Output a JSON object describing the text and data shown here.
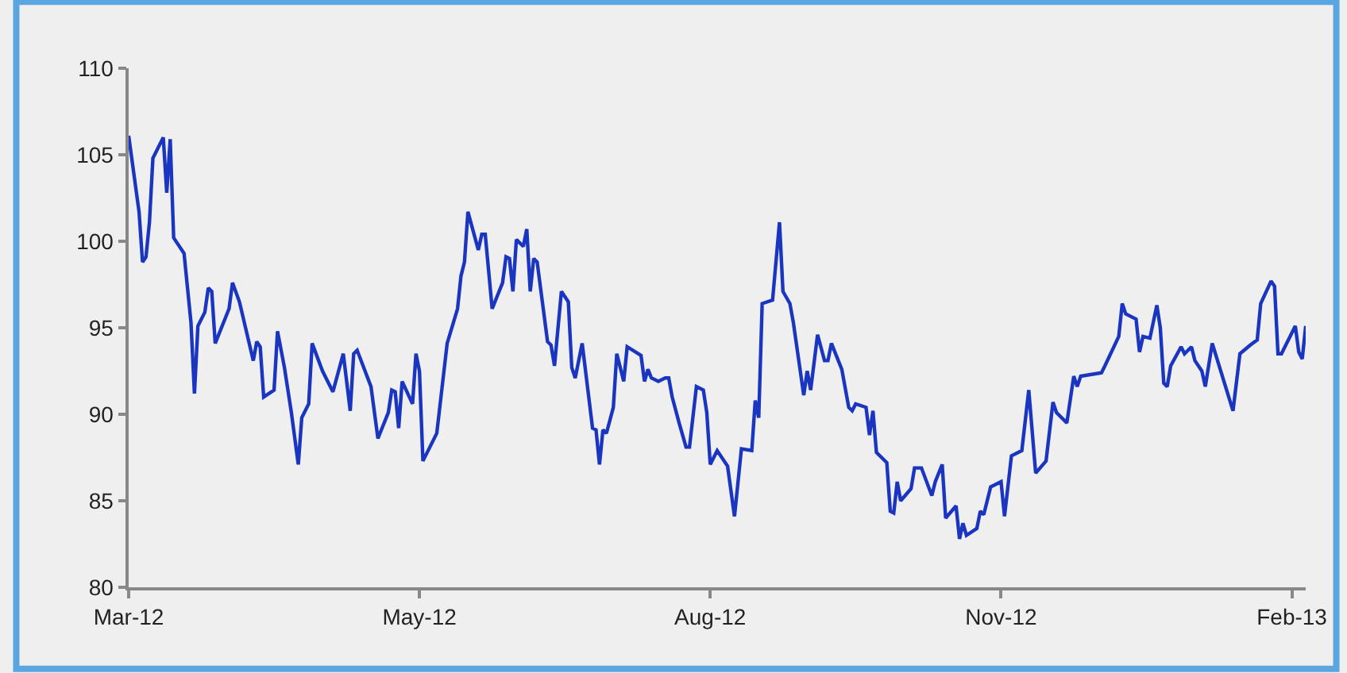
{
  "chart_data": {
    "type": "line",
    "x": [
      "2012-03-08",
      "2012-03-11",
      "2012-03-12",
      "2012-03-13",
      "2012-03-14",
      "2012-03-15",
      "2012-03-18",
      "2012-03-19",
      "2012-03-20",
      "2012-03-21",
      "2012-03-24",
      "2012-03-26",
      "2012-03-27",
      "2012-03-28",
      "2012-03-30",
      "2012-03-31",
      "2012-04-01",
      "2012-04-02",
      "2012-04-06",
      "2012-04-07",
      "2012-04-09",
      "2012-04-13",
      "2012-04-14",
      "2012-04-15",
      "2012-04-16",
      "2012-04-19",
      "2012-04-20",
      "2012-04-22",
      "2012-04-24",
      "2012-04-26",
      "2012-04-27",
      "2012-04-29",
      "2012-04-30",
      "2012-05-03",
      "2012-05-06",
      "2012-05-09",
      "2012-05-11",
      "2012-05-12",
      "2012-05-13",
      "2012-05-17",
      "2012-05-19",
      "2012-05-22",
      "2012-05-23",
      "2012-05-24",
      "2012-05-25",
      "2012-05-26",
      "2012-05-29",
      "2012-05-30",
      "2012-05-31",
      "2012-06-01",
      "2012-06-05",
      "2012-06-08",
      "2012-06-11",
      "2012-06-12",
      "2012-06-13",
      "2012-06-14",
      "2012-06-17",
      "2012-06-18",
      "2012-06-19",
      "2012-06-21",
      "2012-06-24",
      "2012-06-25",
      "2012-06-26",
      "2012-06-27",
      "2012-06-28",
      "2012-06-30",
      "2012-07-01",
      "2012-07-02",
      "2012-07-03",
      "2012-07-04",
      "2012-07-07",
      "2012-07-08",
      "2012-07-09",
      "2012-07-11",
      "2012-07-13",
      "2012-07-14",
      "2012-07-15",
      "2012-07-17",
      "2012-07-20",
      "2012-07-21",
      "2012-07-22",
      "2012-07-23",
      "2012-07-24",
      "2012-07-26",
      "2012-07-27",
      "2012-07-29",
      "2012-07-30",
      "2012-08-03",
      "2012-08-04",
      "2012-08-05",
      "2012-08-06",
      "2012-08-08",
      "2012-08-10",
      "2012-08-11",
      "2012-08-12",
      "2012-08-14",
      "2012-08-16",
      "2012-08-17",
      "2012-08-19",
      "2012-08-21",
      "2012-08-22",
      "2012-08-23",
      "2012-08-25",
      "2012-08-28",
      "2012-08-30",
      "2012-09-01",
      "2012-09-04",
      "2012-09-05",
      "2012-09-06",
      "2012-09-07",
      "2012-09-10",
      "2012-09-12",
      "2012-09-13",
      "2012-09-15",
      "2012-09-16",
      "2012-09-19",
      "2012-09-20",
      "2012-09-21",
      "2012-09-23",
      "2012-09-25",
      "2012-09-26",
      "2012-09-27",
      "2012-09-30",
      "2012-10-02",
      "2012-10-03",
      "2012-10-04",
      "2012-10-07",
      "2012-10-08",
      "2012-10-09",
      "2012-10-10",
      "2012-10-13",
      "2012-10-14",
      "2012-10-15",
      "2012-10-16",
      "2012-10-17",
      "2012-10-20",
      "2012-10-21",
      "2012-10-23",
      "2012-10-26",
      "2012-10-27",
      "2012-10-29",
      "2012-10-30",
      "2012-11-02",
      "2012-11-03",
      "2012-11-04",
      "2012-11-05",
      "2012-11-08",
      "2012-11-09",
      "2012-11-10",
      "2012-11-12",
      "2012-11-15",
      "2012-11-16",
      "2012-11-18",
      "2012-11-21",
      "2012-11-23",
      "2012-11-25",
      "2012-11-28",
      "2012-11-30",
      "2012-12-01",
      "2012-12-04",
      "2012-12-06",
      "2012-12-07",
      "2012-12-08",
      "2012-12-14",
      "2012-12-15",
      "2012-12-19",
      "2012-12-20",
      "2012-12-21",
      "2012-12-24",
      "2012-12-25",
      "2012-12-26",
      "2012-12-28",
      "2012-12-30",
      "2012-12-31",
      "2013-01-01",
      "2013-01-02",
      "2013-01-03",
      "2013-01-06",
      "2013-01-07",
      "2013-01-09",
      "2013-01-10",
      "2013-01-12",
      "2013-01-13",
      "2013-01-15",
      "2013-01-21",
      "2013-01-23",
      "2013-01-26",
      "2013-01-28",
      "2013-01-29",
      "2013-02-01",
      "2013-02-02",
      "2013-02-03",
      "2013-02-04",
      "2013-02-08",
      "2013-02-09",
      "2013-02-10",
      "2013-02-11"
    ],
    "series": [
      {
        "color": "#1a35c0",
        "values": [
          106.1,
          101.7,
          98.8,
          99.1,
          101.1,
          104.8,
          106.0,
          102.8,
          105.9,
          100.2,
          99.3,
          95.3,
          91.2,
          95.1,
          95.9,
          97.3,
          97.1,
          94.1,
          96.1,
          97.6,
          96.5,
          93.1,
          94.2,
          93.9,
          91.0,
          91.4,
          94.8,
          92.7,
          90.1,
          87.1,
          89.8,
          90.6,
          94.1,
          92.5,
          91.3,
          93.5,
          90.2,
          93.5,
          93.7,
          91.6,
          88.6,
          90.1,
          91.4,
          91.3,
          89.2,
          91.9,
          90.6,
          93.5,
          92.5,
          87.3,
          88.9,
          94.1,
          96.1,
          98.0,
          98.8,
          101.7,
          99.5,
          100.4,
          100.4,
          96.1,
          97.6,
          99.1,
          99.0,
          97.1,
          100.1,
          99.7,
          100.7,
          97.1,
          99.0,
          98.8,
          94.2,
          94.0,
          92.8,
          97.1,
          96.5,
          92.7,
          92.1,
          94.1,
          89.2,
          89.1,
          87.1,
          89.1,
          88.9,
          90.4,
          93.5,
          91.9,
          93.9,
          93.4,
          91.9,
          92.6,
          92.1,
          91.9,
          92.1,
          92.1,
          91.0,
          89.5,
          88.1,
          88.1,
          91.6,
          91.4,
          90.1,
          87.1,
          87.9,
          87.0,
          84.1,
          88.0,
          87.9,
          90.8,
          89.8,
          96.4,
          96.6,
          101.1,
          97.1,
          96.4,
          95.3,
          91.1,
          92.5,
          91.4,
          94.6,
          93.1,
          93.1,
          94.1,
          92.6,
          90.4,
          90.2,
          90.6,
          90.4,
          88.8,
          90.2,
          87.8,
          87.2,
          84.4,
          84.3,
          86.1,
          85.0,
          85.7,
          86.9,
          86.9,
          85.3,
          86.1,
          87.1,
          84.0,
          84.7,
          82.8,
          83.7,
          83.0,
          83.4,
          84.4,
          84.2,
          85.8,
          86.1,
          84.1,
          87.6,
          87.9,
          91.4,
          86.6,
          87.3,
          90.7,
          90.1,
          89.5,
          92.2,
          91.6,
          92.2,
          92.4,
          92.8,
          94.5,
          96.4,
          95.8,
          95.5,
          93.6,
          94.5,
          94.4,
          96.3,
          95.0,
          91.8,
          91.6,
          92.8,
          93.9,
          93.5,
          93.9,
          93.1,
          92.5,
          91.6,
          94.1,
          90.2,
          93.5,
          94.0,
          94.3,
          96.4,
          97.7,
          97.4,
          93.5,
          93.5,
          95.1,
          93.6,
          93.2,
          95.1
        ]
      }
    ],
    "xlim": [
      "2012-03-08",
      "2013-02-11"
    ],
    "xticks": [
      {
        "value": "2012-03-08",
        "label": "Mar-12"
      },
      {
        "value": "2012-05-31",
        "label": "May-12"
      },
      {
        "value": "2012-08-23",
        "label": "Aug-12"
      },
      {
        "value": "2012-11-15",
        "label": "Nov-12"
      },
      {
        "value": "2013-02-07",
        "label": "Feb-13"
      }
    ],
    "ylim": [
      80,
      110
    ],
    "yticks": [
      80,
      85,
      90,
      95,
      100,
      105,
      110
    ],
    "grid": false,
    "marker": "none",
    "line_style": "solid"
  }
}
